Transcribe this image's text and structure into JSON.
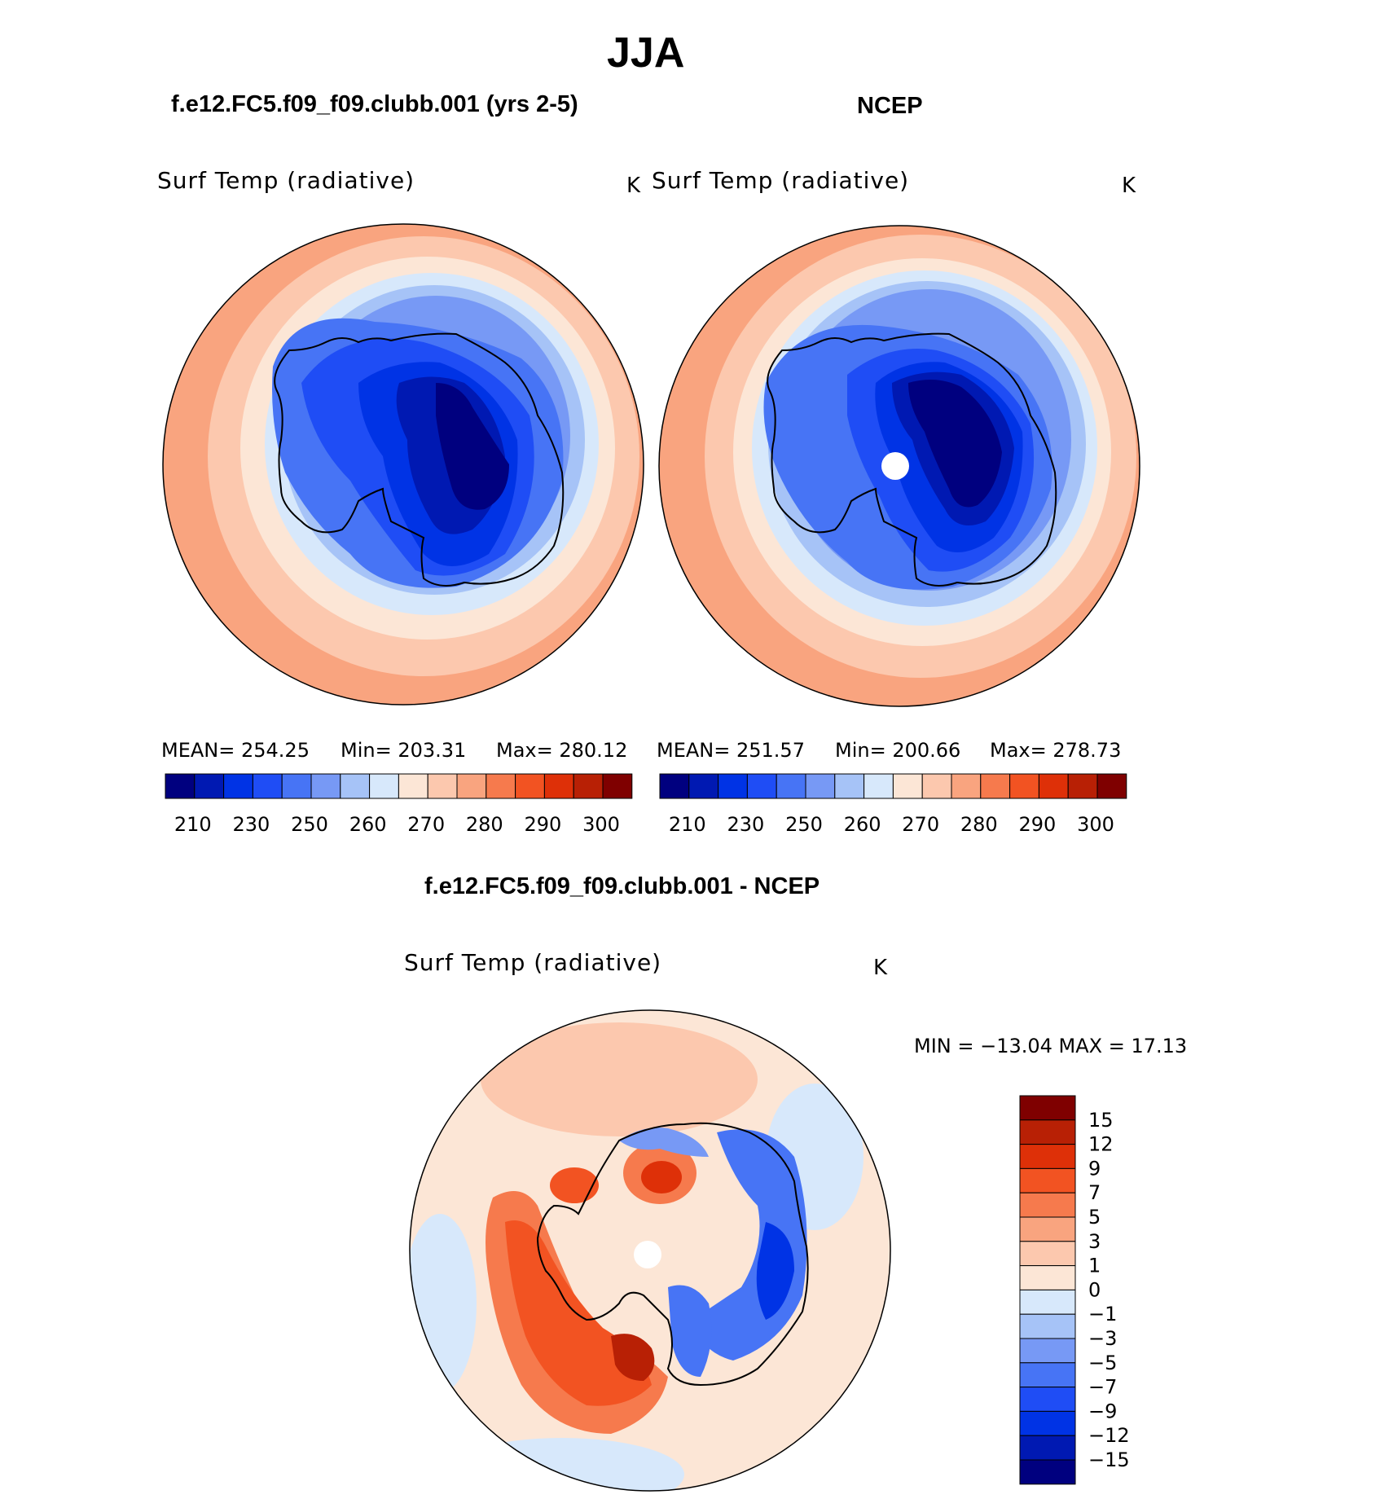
{
  "figure": {
    "title": "JJA",
    "panels": [
      {
        "name": "model",
        "heading": "f.e12.FC5.f09_f09.clubb.001 (yrs 2-5)",
        "variable": "Surf Temp (radiative)",
        "units": "K",
        "stats": {
          "mean": "MEAN= 254.25",
          "min": "Min= 203.31",
          "max": "Max= 280.12"
        }
      },
      {
        "name": "obs",
        "heading": "NCEP",
        "variable": "Surf Temp (radiative)",
        "units": "K",
        "stats": {
          "mean": "MEAN= 251.57",
          "min": "Min= 200.66",
          "max": "Max= 278.73"
        }
      },
      {
        "name": "diff",
        "heading": "f.e12.FC5.f09_f09.clubb.001 - NCEP",
        "variable": "Surf Temp (radiative)",
        "units": "K",
        "stats": {
          "minmax": "MIN = −13.04  MAX =   17.13"
        }
      }
    ],
    "colorbars": {
      "absolute": {
        "colors": [
          "#00007f",
          "#0019b2",
          "#0033e5",
          "#1f4df5",
          "#4774f5",
          "#7799f5",
          "#a6c3f7",
          "#d7e8fb",
          "#fce6d6",
          "#fcc8ae",
          "#f9a47f",
          "#f67a4d",
          "#f25322",
          "#de3008",
          "#b82005",
          "#7f0000"
        ],
        "tick_labels": [
          "210",
          "230",
          "250",
          "260",
          "270",
          "280",
          "290",
          "300"
        ]
      },
      "difference": {
        "colors": [
          "#00007f",
          "#0019b2",
          "#0033e5",
          "#1f4df5",
          "#4774f5",
          "#7799f5",
          "#a6c3f7",
          "#d7e8fb",
          "#fce6d6",
          "#fcc8ae",
          "#f9a47f",
          "#f67a4d",
          "#f25322",
          "#de3008",
          "#b82005",
          "#7f0000"
        ],
        "tick_labels": [
          "−15",
          "−12",
          "−9",
          "−7",
          "−5",
          "−3",
          "−1",
          "0",
          "1",
          "3",
          "5",
          "7",
          "9",
          "12",
          "15"
        ]
      }
    }
  }
}
